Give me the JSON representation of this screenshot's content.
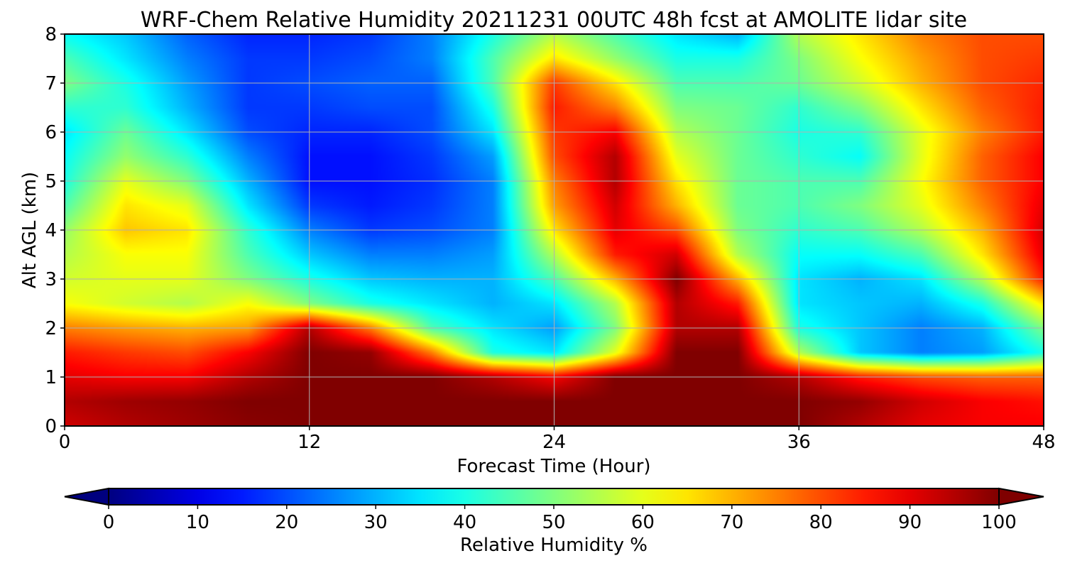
{
  "chart_data": {
    "type": "heatmap",
    "title": "WRF-Chem Relative Humidity 20211231 00UTC 48h fcst at AMOLITE lidar site",
    "xlabel": "Forecast Time (Hour)",
    "ylabel": "Alt AGL (km)",
    "xlim": [
      0,
      48
    ],
    "ylim": [
      0,
      8
    ],
    "x_ticks": [
      0,
      12,
      24,
      36,
      48
    ],
    "y_ticks": [
      0,
      1,
      2,
      3,
      4,
      5,
      6,
      7,
      8
    ],
    "grid": true,
    "colormap": "jet",
    "colorbar": {
      "label": "Relative Humidity %",
      "range": [
        0,
        100
      ],
      "ticks": [
        0,
        10,
        20,
        30,
        40,
        50,
        60,
        70,
        80,
        90,
        100
      ],
      "extend": "both",
      "orientation": "horizontal"
    },
    "x": [
      0,
      3,
      6,
      9,
      12,
      15,
      18,
      21,
      24,
      27,
      30,
      33,
      36,
      39,
      42,
      45,
      48
    ],
    "y": [
      0,
      0.5,
      1,
      1.5,
      2,
      2.5,
      3,
      3.5,
      4,
      4.5,
      5,
      5.5,
      6,
      6.5,
      7,
      7.5,
      8
    ],
    "z": [
      [
        92,
        95,
        97,
        99,
        100,
        100,
        100,
        100,
        100,
        100,
        100,
        100,
        100,
        95,
        90,
        88,
        88
      ],
      [
        95,
        97,
        98,
        100,
        100,
        100,
        100,
        100,
        100,
        100,
        100,
        100,
        100,
        98,
        92,
        88,
        86
      ],
      [
        90,
        88,
        88,
        95,
        100,
        100,
        100,
        95,
        88,
        100,
        100,
        100,
        95,
        85,
        80,
        78,
        78
      ],
      [
        85,
        82,
        80,
        88,
        100,
        98,
        75,
        40,
        35,
        60,
        100,
        100,
        55,
        32,
        25,
        28,
        40
      ],
      [
        75,
        72,
        70,
        72,
        95,
        75,
        45,
        35,
        28,
        50,
        95,
        95,
        40,
        32,
        25,
        30,
        50
      ],
      [
        62,
        58,
        55,
        62,
        50,
        40,
        35,
        30,
        35,
        55,
        95,
        85,
        35,
        32,
        30,
        40,
        65
      ],
      [
        58,
        60,
        60,
        50,
        40,
        32,
        30,
        30,
        45,
        70,
        100,
        70,
        35,
        30,
        35,
        55,
        85
      ],
      [
        55,
        62,
        62,
        45,
        32,
        25,
        25,
        28,
        55,
        85,
        92,
        55,
        38,
        38,
        45,
        65,
        90
      ],
      [
        52,
        68,
        65,
        42,
        25,
        18,
        20,
        25,
        65,
        90,
        80,
        50,
        42,
        45,
        55,
        70,
        92
      ],
      [
        45,
        65,
        60,
        35,
        18,
        15,
        18,
        25,
        72,
        92,
        70,
        48,
        45,
        50,
        60,
        75,
        90
      ],
      [
        40,
        60,
        50,
        30,
        14,
        14,
        17,
        25,
        75,
        95,
        65,
        48,
        45,
        45,
        62,
        78,
        88
      ],
      [
        38,
        52,
        42,
        25,
        14,
        14,
        18,
        28,
        80,
        95,
        60,
        48,
        42,
        38,
        60,
        78,
        88
      ],
      [
        35,
        48,
        35,
        20,
        16,
        16,
        20,
        35,
        82,
        88,
        55,
        48,
        40,
        42,
        60,
        75,
        85
      ],
      [
        42,
        42,
        30,
        18,
        18,
        20,
        20,
        40,
        85,
        75,
        50,
        48,
        42,
        50,
        65,
        78,
        85
      ],
      [
        50,
        40,
        28,
        18,
        20,
        22,
        22,
        45,
        82,
        65,
        45,
        45,
        48,
        58,
        70,
        80,
        84
      ],
      [
        45,
        35,
        25,
        18,
        18,
        20,
        25,
        45,
        65,
        52,
        40,
        40,
        50,
        62,
        72,
        80,
        82
      ],
      [
        38,
        32,
        22,
        16,
        16,
        18,
        25,
        40,
        55,
        45,
        35,
        30,
        55,
        65,
        75,
        80,
        80
      ]
    ]
  }
}
